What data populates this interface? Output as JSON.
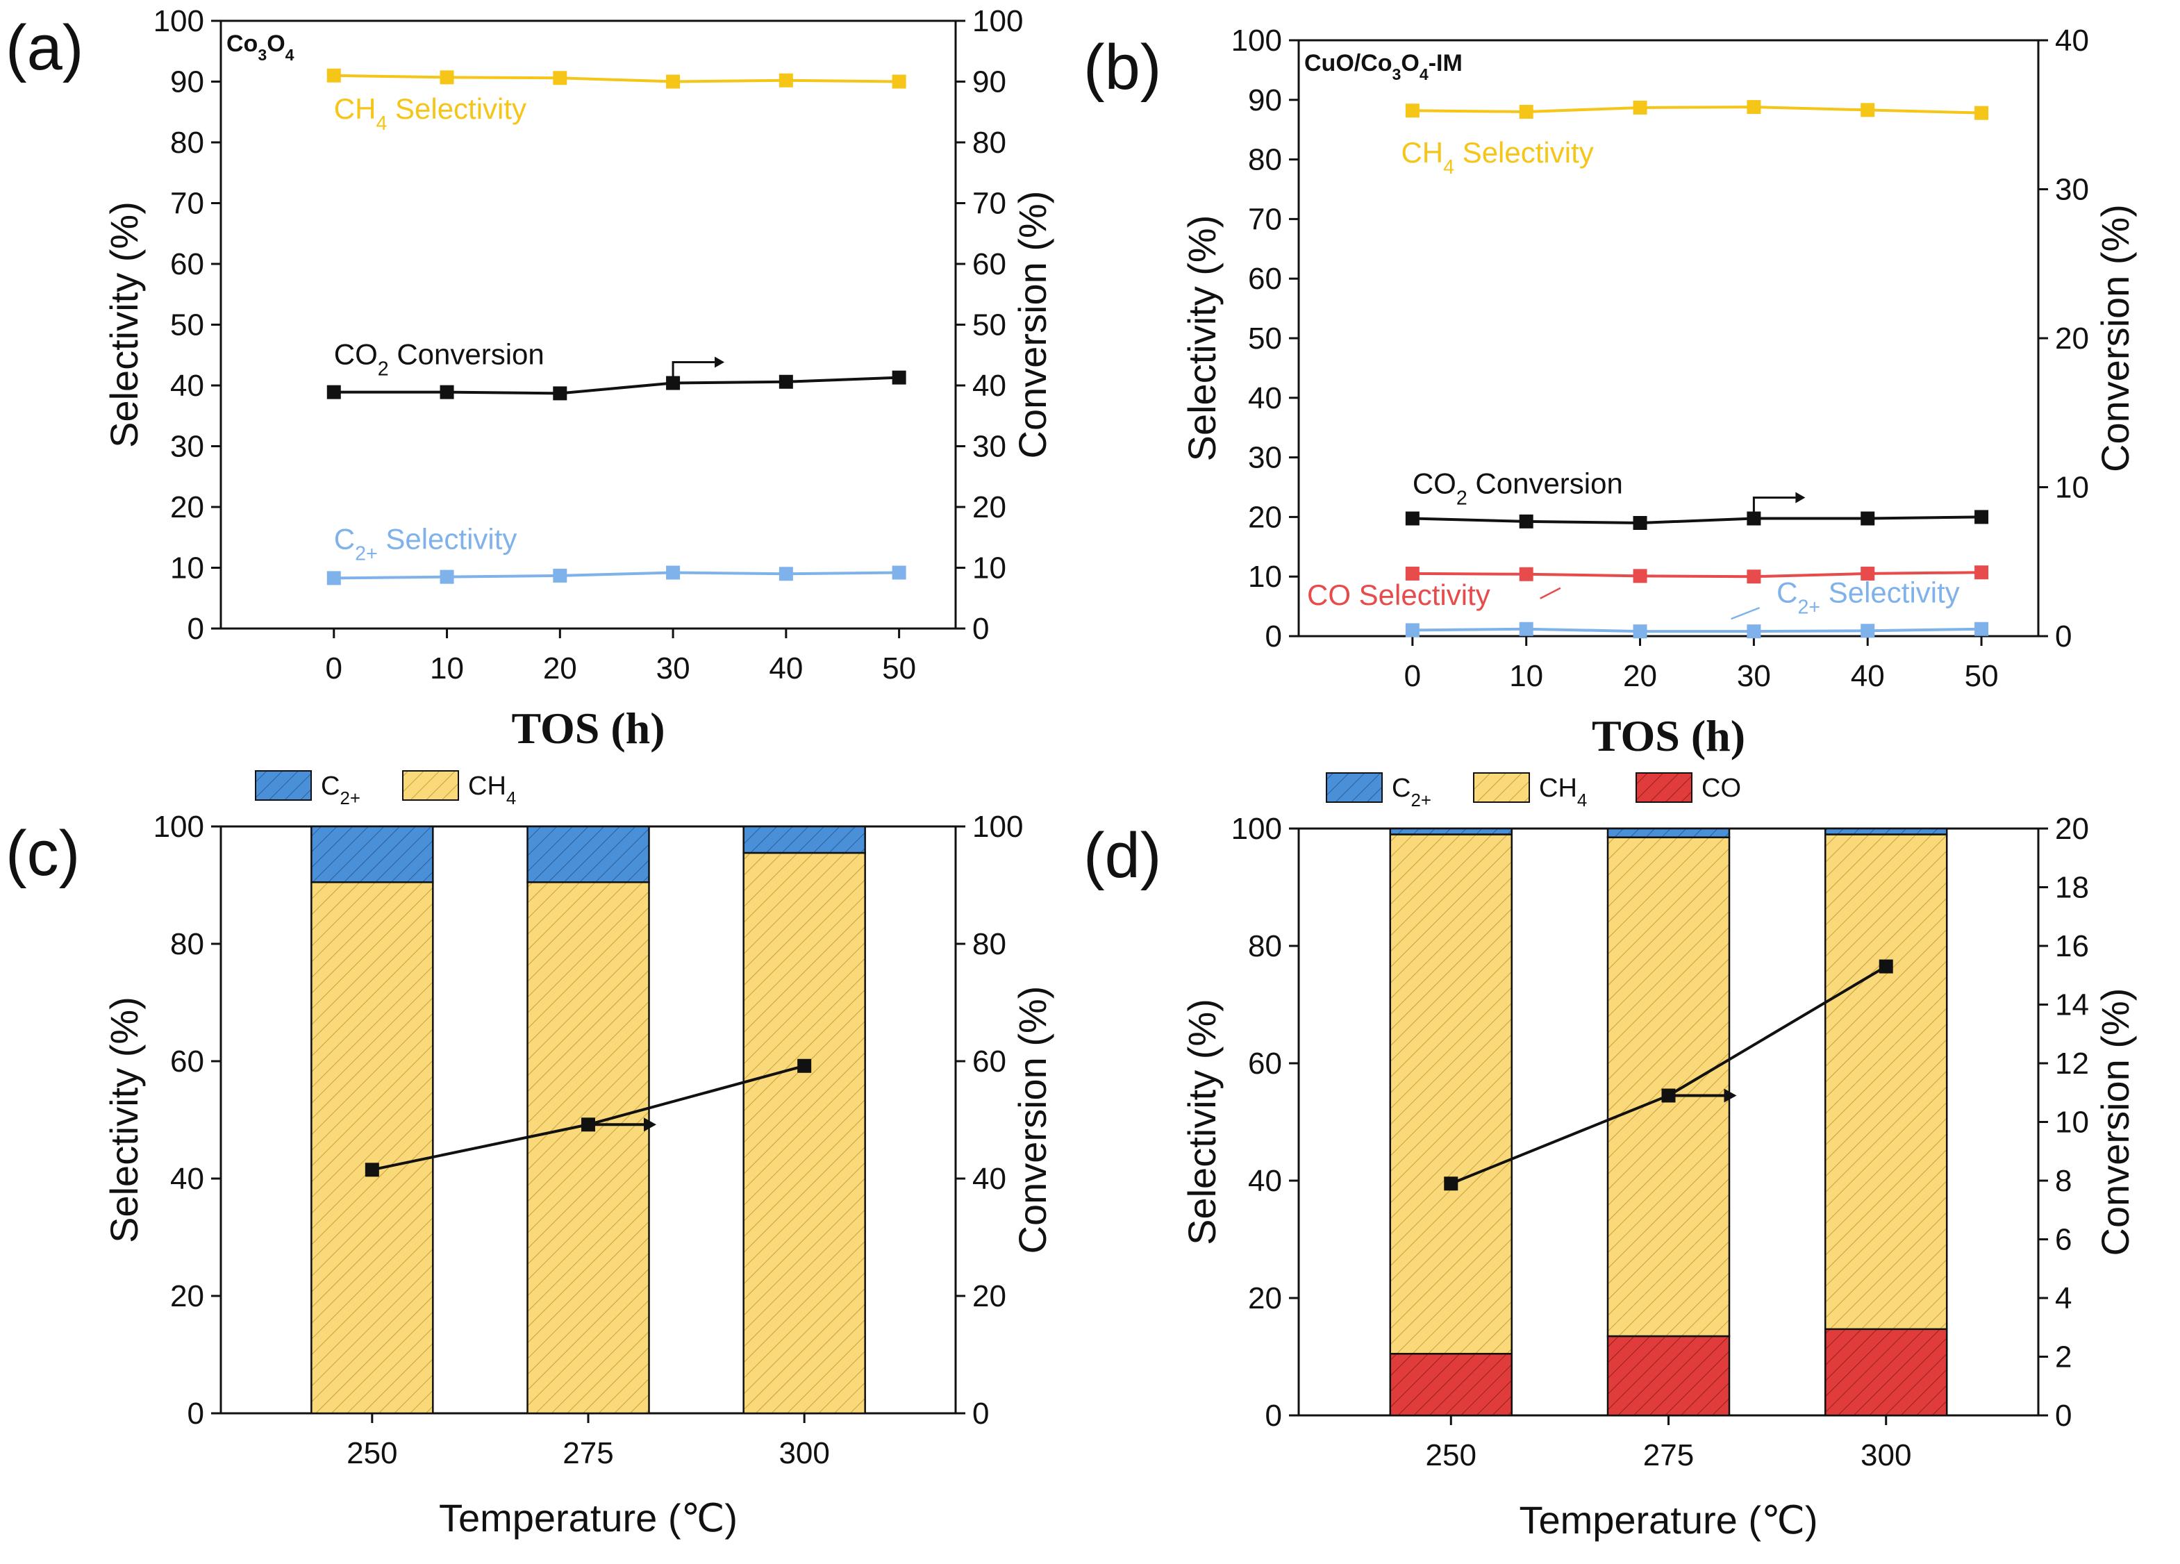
{
  "colors": {
    "ch4": "#F5C518",
    "ch4_fill": "#FAD97A",
    "c2": "#7FB2EA",
    "c2_fill": "#4A90D9",
    "co": "#E84B4B",
    "co_fill": "#E03C3C",
    "conv": "#111111"
  },
  "chart_data": [
    {
      "id": "a",
      "type": "line",
      "panel_label": "(a)",
      "inset_label": "Co3O4",
      "xlabel": "TOS (h)",
      "ylabel": "Selectivity (%)",
      "y2label": "Conversion (%)",
      "x": [
        0,
        10,
        20,
        30,
        40,
        50
      ],
      "xticks": [
        0,
        10,
        20,
        30,
        40,
        50
      ],
      "xlim": [
        -10,
        55
      ],
      "ylim": [
        0,
        100
      ],
      "yticks": [
        0,
        10,
        20,
        30,
        40,
        50,
        60,
        70,
        80,
        90,
        100
      ],
      "y2lim": [
        0,
        100
      ],
      "y2ticks": [
        0,
        10,
        20,
        30,
        40,
        50,
        60,
        70,
        80,
        90,
        100
      ],
      "series": [
        {
          "name": "CH4 Selectivity",
          "key": "ch4",
          "axis": "left",
          "values": [
            91.0,
            90.7,
            90.6,
            90.0,
            90.2,
            90.0
          ]
        },
        {
          "name": "CO2 Conversion",
          "key": "conv",
          "axis": "right",
          "values": [
            38.9,
            38.9,
            38.7,
            40.4,
            40.6,
            41.3
          ]
        },
        {
          "name": "C2+ Selectivity",
          "key": "c2",
          "axis": "left",
          "values": [
            8.3,
            8.5,
            8.7,
            9.2,
            9.0,
            9.2
          ]
        }
      ],
      "annotations": [
        {
          "label": "CH4 Selectivity",
          "key": "ch4"
        },
        {
          "label": "CO2 Conversion",
          "key": "conv"
        },
        {
          "label": "C2+ Selectivity",
          "key": "c2"
        }
      ]
    },
    {
      "id": "b",
      "type": "line",
      "panel_label": "(b)",
      "inset_label": "CuO/Co3O4-IM",
      "xlabel": "TOS (h)",
      "ylabel": "Selectivity (%)",
      "y2label": "Conversion (%)",
      "x": [
        0,
        10,
        20,
        30,
        40,
        50
      ],
      "xticks": [
        0,
        10,
        20,
        30,
        40,
        50
      ],
      "xlim": [
        -10,
        55
      ],
      "ylim": [
        0,
        100
      ],
      "yticks": [
        0,
        10,
        20,
        30,
        40,
        50,
        60,
        70,
        80,
        90,
        100
      ],
      "y2lim": [
        0,
        40
      ],
      "y2ticks": [
        0,
        10,
        20,
        30,
        40
      ],
      "series": [
        {
          "name": "CH4 Selectivity",
          "key": "ch4",
          "axis": "left",
          "values": [
            88.2,
            88.0,
            88.7,
            88.8,
            88.3,
            87.8
          ]
        },
        {
          "name": "CO2 Conversion",
          "key": "conv",
          "axis": "right",
          "values": [
            7.9,
            7.7,
            7.6,
            7.9,
            7.9,
            8.0
          ]
        },
        {
          "name": "CO Selectivity",
          "key": "co",
          "axis": "left",
          "values": [
            10.5,
            10.4,
            10.1,
            10.0,
            10.5,
            10.7
          ]
        },
        {
          "name": "C2+ Selectivity",
          "key": "c2",
          "axis": "left",
          "values": [
            1.0,
            1.2,
            0.8,
            0.8,
            0.9,
            1.2
          ]
        }
      ],
      "annotations": [
        {
          "label": "CH4 Selectivity",
          "key": "ch4"
        },
        {
          "label": "CO2 Conversion",
          "key": "conv"
        },
        {
          "label": "CO Selectivity",
          "key": "co"
        },
        {
          "label": "C2+ Selectivity",
          "key": "c2"
        }
      ]
    },
    {
      "id": "c",
      "type": "bar",
      "stacked": true,
      "panel_label": "(c)",
      "xlabel": "Temperature (℃)",
      "ylabel": "Selectivity (%)",
      "y2label": "Conversion (%)",
      "categories": [
        "250",
        "275",
        "300"
      ],
      "ylim": [
        0,
        100
      ],
      "yticks": [
        0,
        20,
        40,
        60,
        80,
        100
      ],
      "y2lim": [
        0,
        100
      ],
      "y2ticks": [
        0,
        20,
        40,
        60,
        80,
        100
      ],
      "legend": [
        "C2+",
        "CH4"
      ],
      "series": [
        {
          "name": "CH4",
          "key": "ch4",
          "values": [
            90.5,
            90.5,
            95.5
          ]
        },
        {
          "name": "C2+",
          "key": "c2",
          "values": [
            9.5,
            9.5,
            4.5
          ]
        }
      ],
      "conversion": {
        "name": "CO2 Conversion",
        "values": [
          41.5,
          49.2,
          59.2
        ]
      }
    },
    {
      "id": "d",
      "type": "bar",
      "stacked": true,
      "panel_label": "(d)",
      "xlabel": "Temperature (℃)",
      "ylabel": "Selectivity (%)",
      "y2label": "Conversion (%)",
      "categories": [
        "250",
        "275",
        "300"
      ],
      "ylim": [
        0,
        100
      ],
      "yticks": [
        0,
        20,
        40,
        60,
        80,
        100
      ],
      "y2lim": [
        0,
        20
      ],
      "y2ticks": [
        0,
        2,
        4,
        6,
        8,
        10,
        12,
        14,
        16,
        18,
        20
      ],
      "legend": [
        "C2+",
        "CH4",
        "CO"
      ],
      "series": [
        {
          "name": "CO",
          "key": "co",
          "values": [
            10.5,
            13.5,
            14.7
          ]
        },
        {
          "name": "CH4",
          "key": "ch4",
          "values": [
            88.5,
            85.0,
            84.3
          ]
        },
        {
          "name": "C2+",
          "key": "c2",
          "values": [
            1.0,
            1.5,
            1.0
          ]
        }
      ],
      "conversion": {
        "name": "CO2 Conversion",
        "values": [
          7.9,
          10.9,
          15.3
        ]
      }
    }
  ]
}
